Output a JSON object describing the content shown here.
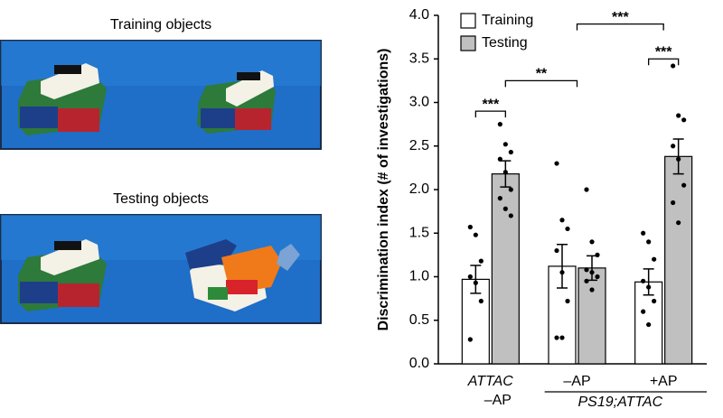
{
  "images": [
    {
      "caption": "Training objects"
    },
    {
      "caption": "Testing objects"
    }
  ],
  "chart_data": {
    "type": "bar",
    "y_label": "Discrimination index (# of investigations)",
    "categories": [
      "–AP",
      "–AP",
      "+AP"
    ],
    "groups": [
      {
        "label": "ATTAC",
        "size": 1
      },
      {
        "label": "PS19;ATTAC",
        "size": 2
      }
    ],
    "series": [
      {
        "name": "Training",
        "color": "#ffffff",
        "values": [
          0.97,
          1.12,
          0.94
        ],
        "errors": [
          0.16,
          0.25,
          0.15
        ],
        "points": [
          [
            1.57,
            1.48,
            1.18,
            1.0,
            0.93,
            0.72,
            0.28
          ],
          [
            2.3,
            1.65,
            1.55,
            1.3,
            1.05,
            0.72,
            0.3,
            0.3
          ],
          [
            1.5,
            1.4,
            1.2,
            0.95,
            0.88,
            0.72,
            0.6,
            0.45
          ]
        ]
      },
      {
        "name": "Testing",
        "color": "#c0c0c0",
        "values": [
          2.18,
          1.1,
          2.38
        ],
        "errors": [
          0.15,
          0.14,
          0.2
        ],
        "points": [
          [
            2.75,
            2.52,
            2.43,
            2.35,
            2.2,
            2.0,
            1.9,
            1.78,
            1.7
          ],
          [
            2.0,
            1.4,
            1.25,
            1.08,
            1.05,
            1.0,
            0.95,
            0.85
          ],
          [
            3.42,
            2.85,
            2.8,
            2.5,
            2.35,
            2.05,
            1.85,
            1.62
          ]
        ]
      }
    ],
    "ylim": [
      0,
      4
    ],
    "yticks": [
      {
        "value": 0,
        "label": "0.0"
      },
      {
        "value": 0.5,
        "label": "0.5"
      },
      {
        "value": 1,
        "label": "1.0"
      },
      {
        "value": 1.5,
        "label": "1.5"
      },
      {
        "value": 2,
        "label": "2.0"
      },
      {
        "value": 2.5,
        "label": "2.5"
      },
      {
        "value": 3,
        "label": "3.0"
      },
      {
        "value": 3.5,
        "label": "3.5"
      },
      {
        "value": 4,
        "label": "4.0"
      }
    ],
    "significance": [
      {
        "label": "***",
        "y": 2.9,
        "left": [
          0,
          0
        ],
        "right": [
          0,
          1
        ]
      },
      {
        "label": "**",
        "y": 3.25,
        "left": [
          0,
          1
        ],
        "right": [
          1,
          null
        ]
      },
      {
        "label": "***",
        "y": 3.5,
        "left": [
          2,
          0
        ],
        "right": [
          2,
          1
        ]
      },
      {
        "label": "***",
        "y": 3.9,
        "left": [
          1,
          null
        ],
        "right": [
          2,
          null
        ]
      }
    ],
    "legend": "top-left",
    "grid": false
  }
}
